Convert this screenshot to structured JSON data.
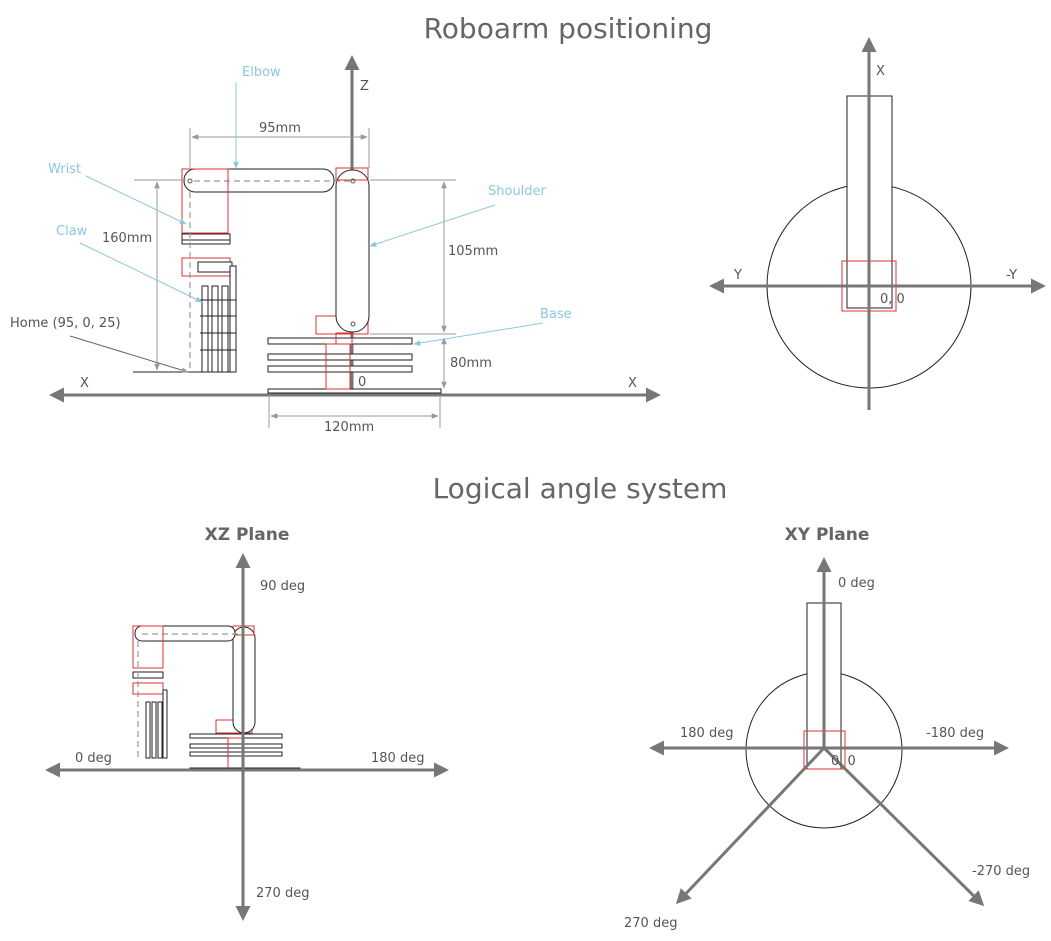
{
  "titles": {
    "positioning": "Roboarm positioning",
    "angles": "Logical angle system"
  },
  "side_view": {
    "axis_z": "Z",
    "axis_x_left": "X",
    "axis_x_right": "X",
    "origin": "0",
    "dim_95": "95mm",
    "dim_160": "160mm",
    "dim_105": "105mm",
    "dim_80": "80mm",
    "dim_120": "120mm",
    "callouts": {
      "elbow": "Elbow",
      "wrist": "Wrist",
      "claw": "Claw",
      "shoulder": "Shoulder",
      "base": "Base",
      "home": "Home (95, 0, 25)"
    }
  },
  "top_view": {
    "axis_x": "X",
    "axis_y": "Y",
    "axis_neg_y": "-Y",
    "origin": "0, 0"
  },
  "xz_plane": {
    "title": "XZ Plane",
    "deg_90": "90 deg",
    "deg_0": "0 deg",
    "deg_180": "180 deg",
    "deg_270": "270 deg"
  },
  "xy_plane": {
    "title": "XY Plane",
    "deg_0": "0 deg",
    "deg_180": "180 deg",
    "deg_neg_180": "-180 deg",
    "deg_270": "270 deg",
    "deg_neg_270": "-270 deg",
    "origin": "0, 0"
  },
  "colors": {
    "callout": "#8cc8dc",
    "axis": "#777777",
    "outline_red": "#e03030"
  }
}
